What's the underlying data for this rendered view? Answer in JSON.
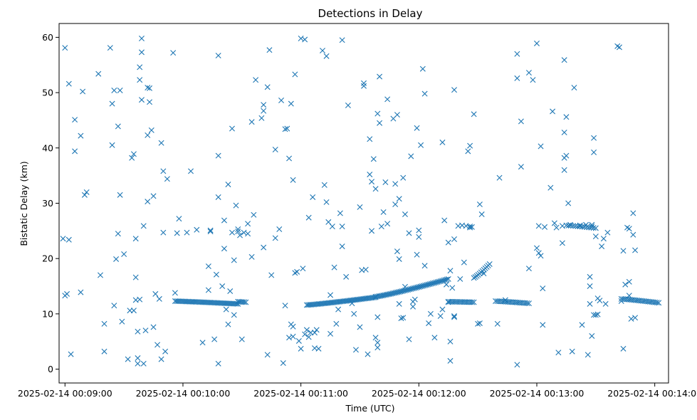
{
  "chart_data": {
    "type": "scatter",
    "title": "Detections in Delay",
    "xlabel": "Time (UTC)",
    "ylabel": "Bistatic Delay (km)",
    "marker": "x",
    "color": "#1f77b4",
    "xlim": [
      -3,
      307
    ],
    "ylim": [
      -2.5,
      62.5
    ],
    "x_units": "seconds after 2025-02-14 00:09:00",
    "x_ticks": [
      {
        "value": 0,
        "label": "2025-02-14 00:09:00"
      },
      {
        "value": 60,
        "label": "2025-02-14 00:10:00"
      },
      {
        "value": 120,
        "label": "2025-02-14 00:11:00"
      },
      {
        "value": 180,
        "label": "2025-02-14 00:12:00"
      },
      {
        "value": 240,
        "label": "2025-02-14 00:13:00"
      },
      {
        "value": 300,
        "label": "2025-02-14 00:14:00"
      }
    ],
    "y_ticks": [
      0,
      10,
      20,
      30,
      40,
      50,
      60
    ],
    "tracks": [
      {
        "name": "track-1",
        "t_start": 56,
        "t_end": 88,
        "delay_start": 12.3,
        "delay_end": 11.8,
        "count": 44
      },
      {
        "name": "track-2",
        "t_start": 88,
        "t_end": 92,
        "delay_start": 12.2,
        "delay_end": 12.1,
        "count": 6
      },
      {
        "name": "track-3",
        "t_start": 123,
        "t_end": 158,
        "delay_start": 11.6,
        "delay_end": 13.0,
        "count": 48
      },
      {
        "name": "track-4",
        "t_start": 158,
        "t_end": 195,
        "delay_start": 13.1,
        "delay_end": 16.3,
        "count": 48
      },
      {
        "name": "track-5",
        "t_start": 195,
        "t_end": 208,
        "delay_start": 12.2,
        "delay_end": 12.1,
        "count": 16
      },
      {
        "name": "track-6",
        "t_start": 219,
        "t_end": 236,
        "delay_start": 12.3,
        "delay_end": 11.9,
        "count": 20
      },
      {
        "name": "track-7",
        "t_start": 283,
        "t_end": 302,
        "delay_start": 12.7,
        "delay_end": 12.0,
        "count": 22
      },
      {
        "name": "track-8",
        "t_start": 208,
        "t_end": 216,
        "delay_start": 16.5,
        "delay_end": 19.0,
        "count": 12
      },
      {
        "name": "track-9",
        "t_start": 255,
        "t_end": 270,
        "delay_start": 26.0,
        "delay_end": 25.5,
        "count": 14
      }
    ],
    "scatter_points": [
      [
        -1,
        23.6
      ],
      [
        0,
        58.1
      ],
      [
        1,
        13.6
      ],
      [
        0,
        13.3
      ],
      [
        2,
        23.4
      ],
      [
        2,
        51.6
      ],
      [
        3,
        2.7
      ],
      [
        5,
        45.1
      ],
      [
        5,
        39.4
      ],
      [
        8,
        42.2
      ],
      [
        8,
        13.9
      ],
      [
        9,
        50.2
      ],
      [
        10,
        31.5
      ],
      [
        11,
        32.0
      ],
      [
        17,
        53.4
      ],
      [
        18,
        17.0
      ],
      [
        20,
        8.2
      ],
      [
        20,
        3.2
      ],
      [
        23,
        58.1
      ],
      [
        24,
        48
      ],
      [
        24,
        40.5
      ],
      [
        25,
        11.5
      ],
      [
        25,
        50.4
      ],
      [
        26,
        19.9
      ],
      [
        27,
        43.9
      ],
      [
        27,
        24.5
      ],
      [
        28,
        31.5
      ],
      [
        28,
        50.4
      ],
      [
        29,
        8.6
      ],
      [
        30,
        20.8
      ],
      [
        32,
        1.8
      ],
      [
        33,
        10.6
      ],
      [
        34,
        38.2
      ],
      [
        35,
        38.9
      ],
      [
        35,
        10.6
      ],
      [
        36,
        12.5
      ],
      [
        36,
        23.6
      ],
      [
        36,
        16.6
      ],
      [
        37,
        6.8
      ],
      [
        37,
        2.0
      ],
      [
        37,
        1.0
      ],
      [
        38,
        12.6
      ],
      [
        38,
        54.6
      ],
      [
        38,
        52.3
      ],
      [
        39,
        48.7
      ],
      [
        39,
        59.8
      ],
      [
        39,
        57.3
      ],
      [
        40,
        1.0
      ],
      [
        40,
        25.9
      ],
      [
        41,
        7.0
      ],
      [
        42,
        42.3
      ],
      [
        42,
        50.9
      ],
      [
        42,
        30.3
      ],
      [
        43,
        48.3
      ],
      [
        43,
        50.8
      ],
      [
        44,
        43.2
      ],
      [
        45,
        31.3
      ],
      [
        45,
        7.6
      ],
      [
        46,
        13.6
      ],
      [
        47,
        4.4
      ],
      [
        48,
        12.7
      ],
      [
        49,
        1.8
      ],
      [
        49,
        40.9
      ],
      [
        50,
        35.8
      ],
      [
        50,
        24.7
      ],
      [
        51,
        3.2
      ],
      [
        52,
        34.4
      ],
      [
        55,
        57.2
      ],
      [
        56,
        13.8
      ],
      [
        57,
        24.6
      ],
      [
        58,
        27.2
      ],
      [
        62,
        24.7
      ],
      [
        64,
        35.8
      ],
      [
        67,
        25.2
      ],
      [
        70,
        4.8
      ],
      [
        73,
        18.6
      ],
      [
        73,
        14.3
      ],
      [
        74,
        24.9
      ],
      [
        74,
        25.1
      ],
      [
        76,
        5.4
      ],
      [
        77,
        17.1
      ],
      [
        78,
        31.1
      ],
      [
        78,
        56.7
      ],
      [
        78,
        1.0
      ],
      [
        78,
        38.6
      ],
      [
        80,
        15.0
      ],
      [
        81,
        26.9
      ],
      [
        81,
        21.8
      ],
      [
        82,
        10.8
      ],
      [
        83,
        8.1
      ],
      [
        83,
        33.4
      ],
      [
        84,
        14.1
      ],
      [
        85,
        43.5
      ],
      [
        85,
        24.7
      ],
      [
        86,
        19.7
      ],
      [
        86,
        9.8
      ],
      [
        87,
        29.6
      ],
      [
        88,
        25.3
      ],
      [
        88,
        24.9
      ],
      [
        89,
        24.2
      ],
      [
        90,
        5.4
      ],
      [
        91,
        24.7
      ],
      [
        93,
        24.5
      ],
      [
        93,
        26.3
      ],
      [
        95,
        20.3
      ],
      [
        95,
        44.7
      ],
      [
        96,
        27.9
      ],
      [
        97,
        52.3
      ],
      [
        100,
        45.4
      ],
      [
        101,
        22.0
      ],
      [
        101,
        46.7
      ],
      [
        101,
        47.8
      ],
      [
        103,
        51.0
      ],
      [
        103,
        2.6
      ],
      [
        104,
        57.7
      ],
      [
        105,
        17.0
      ],
      [
        107,
        23.7
      ],
      [
        107,
        39.7
      ],
      [
        109,
        25.3
      ],
      [
        110,
        48.6
      ],
      [
        111,
        1.1
      ],
      [
        112,
        11.5
      ],
      [
        112,
        43.4
      ],
      [
        113,
        43.5
      ],
      [
        114,
        38.1
      ],
      [
        114,
        5.7
      ],
      [
        115,
        8.1
      ],
      [
        115,
        48.0
      ],
      [
        116,
        5.9
      ],
      [
        116,
        7.7
      ],
      [
        116,
        34.2
      ],
      [
        117,
        17.4
      ],
      [
        117,
        53.3
      ],
      [
        118,
        17.6
      ],
      [
        119,
        5.1
      ],
      [
        120,
        3.7
      ],
      [
        120,
        59.8
      ],
      [
        121,
        18.2
      ],
      [
        122,
        6.3
      ],
      [
        122,
        59.6
      ],
      [
        123,
        7.1
      ],
      [
        124,
        5.8
      ],
      [
        124,
        27.4
      ],
      [
        125,
        6.6
      ],
      [
        126,
        31.1
      ],
      [
        127,
        6.6
      ],
      [
        127,
        3.8
      ],
      [
        128,
        7.1
      ],
      [
        129,
        3.7
      ],
      [
        131,
        57.6
      ],
      [
        132,
        33.3
      ],
      [
        133,
        30.2
      ],
      [
        133,
        56.6
      ],
      [
        134,
        26.6
      ],
      [
        135,
        13.4
      ],
      [
        135,
        6.4
      ],
      [
        136,
        25.8
      ],
      [
        137,
        18.4
      ],
      [
        138,
        8.2
      ],
      [
        139,
        10.8
      ],
      [
        140,
        28.2
      ],
      [
        141,
        22.2
      ],
      [
        141,
        25.8
      ],
      [
        141,
        59.5
      ],
      [
        143,
        16.7
      ],
      [
        144,
        47.7
      ],
      [
        146,
        11.9
      ],
      [
        147,
        10.0
      ],
      [
        148,
        3.5
      ],
      [
        150,
        7.6
      ],
      [
        150,
        29.3
      ],
      [
        151,
        17.9
      ],
      [
        152,
        51.7
      ],
      [
        152,
        51.2
      ],
      [
        153,
        18.0
      ],
      [
        154,
        2.7
      ],
      [
        155,
        41.6
      ],
      [
        155,
        35.2
      ],
      [
        156,
        33.9
      ],
      [
        156,
        25
      ],
      [
        157,
        38
      ],
      [
        158,
        32.6
      ],
      [
        158,
        5.7
      ],
      [
        159,
        46.2
      ],
      [
        159,
        9.4
      ],
      [
        159,
        4.8
      ],
      [
        159,
        3.9
      ],
      [
        160,
        44.5
      ],
      [
        160,
        52.9
      ],
      [
        161,
        25.8
      ],
      [
        162,
        28.4
      ],
      [
        163,
        33.8
      ],
      [
        164,
        26.3
      ],
      [
        164,
        48.8
      ],
      [
        167,
        45.3
      ],
      [
        168,
        33.5
      ],
      [
        168,
        29.8
      ],
      [
        169,
        46.0
      ],
      [
        169,
        21.3
      ],
      [
        170,
        30.8
      ],
      [
        170,
        19.9
      ],
      [
        170,
        11.8
      ],
      [
        171,
        9.2
      ],
      [
        172,
        9.3
      ],
      [
        172,
        34.6
      ],
      [
        173,
        14.9
      ],
      [
        173,
        28.0
      ],
      [
        175,
        5.4
      ],
      [
        175,
        24.6
      ],
      [
        176,
        38.5
      ],
      [
        177,
        12.2
      ],
      [
        177,
        11.3
      ],
      [
        178,
        12.6
      ],
      [
        179,
        43.6
      ],
      [
        179,
        20.7
      ],
      [
        180,
        23.9
      ],
      [
        180,
        25.1
      ],
      [
        181,
        40.5
      ],
      [
        182,
        54.3
      ],
      [
        183,
        18.7
      ],
      [
        183,
        49.8
      ],
      [
        185,
        8.3
      ],
      [
        186,
        10.0
      ],
      [
        188,
        5.7
      ],
      [
        191,
        9.6
      ],
      [
        192,
        10.8
      ],
      [
        192,
        41.0
      ],
      [
        193,
        26.9
      ],
      [
        194,
        15.3
      ],
      [
        195,
        22.9
      ],
      [
        195,
        12.1
      ],
      [
        196,
        1.5
      ],
      [
        196,
        17.8
      ],
      [
        196,
        5.0
      ],
      [
        197,
        14.7
      ],
      [
        198,
        50.5
      ],
      [
        198,
        9.4
      ],
      [
        198,
        23.5
      ],
      [
        198,
        9.6
      ],
      [
        200,
        25.9
      ],
      [
        201,
        16.3
      ],
      [
        202,
        26.0
      ],
      [
        203,
        19.3
      ],
      [
        204,
        25.9
      ],
      [
        205,
        39.4
      ],
      [
        206,
        25.8
      ],
      [
        206,
        40.4
      ],
      [
        206,
        25.6
      ],
      [
        207,
        25.7
      ],
      [
        208,
        46.1
      ],
      [
        210,
        8.2
      ],
      [
        211,
        29.8
      ],
      [
        211,
        8.3
      ],
      [
        212,
        28.0
      ],
      [
        213,
        17.3
      ],
      [
        220,
        8.2
      ],
      [
        221,
        34.6
      ],
      [
        224,
        12.5
      ],
      [
        230,
        57.0
      ],
      [
        230,
        52.6
      ],
      [
        230,
        0.8
      ],
      [
        232,
        36.6
      ],
      [
        232,
        44.8
      ],
      [
        236,
        18.2
      ],
      [
        236,
        53.6
      ],
      [
        238,
        52.3
      ],
      [
        240,
        58.9
      ],
      [
        240,
        21.9
      ],
      [
        241,
        21.0
      ],
      [
        241,
        25.9
      ],
      [
        242,
        40.3
      ],
      [
        242,
        20.5
      ],
      [
        243,
        14.6
      ],
      [
        243,
        8.0
      ],
      [
        244,
        25.7
      ],
      [
        247,
        32.8
      ],
      [
        248,
        46.6
      ],
      [
        249,
        26.4
      ],
      [
        250,
        25.6
      ],
      [
        251,
        3.0
      ],
      [
        253,
        22.8
      ],
      [
        253,
        25.9
      ],
      [
        254,
        55.9
      ],
      [
        254,
        42.8
      ],
      [
        254,
        36.0
      ],
      [
        254,
        38.2
      ],
      [
        255,
        38.6
      ],
      [
        255,
        45.6
      ],
      [
        256,
        30.0
      ],
      [
        257,
        26.1
      ],
      [
        258,
        3.2
      ],
      [
        259,
        50.9
      ],
      [
        262,
        26.0
      ],
      [
        263,
        8.0
      ],
      [
        265,
        26.1
      ],
      [
        266,
        2.6
      ],
      [
        267,
        16.7
      ],
      [
        267,
        11.8
      ],
      [
        267,
        15.0
      ],
      [
        268,
        6.0
      ],
      [
        268,
        26.1
      ],
      [
        268,
        25.8
      ],
      [
        269,
        39.2
      ],
      [
        269,
        41.8
      ],
      [
        269,
        9.8
      ],
      [
        270,
        9.8
      ],
      [
        270,
        24.0
      ],
      [
        271,
        12.8
      ],
      [
        271,
        9.9
      ],
      [
        272,
        12.4
      ],
      [
        273,
        22.2
      ],
      [
        274,
        23.6
      ],
      [
        275,
        11.8
      ],
      [
        276,
        24.7
      ],
      [
        281,
        58.4
      ],
      [
        282,
        58.2
      ],
      [
        283,
        12.3
      ],
      [
        284,
        21.4
      ],
      [
        284,
        3.7
      ],
      [
        285,
        15.3
      ],
      [
        286,
        25.6
      ],
      [
        287,
        15.8
      ],
      [
        287,
        13.3
      ],
      [
        287,
        25.4
      ],
      [
        288,
        9.1
      ],
      [
        289,
        28.2
      ],
      [
        289,
        24.3
      ],
      [
        290,
        9.3
      ],
      [
        290,
        21.5
      ]
    ]
  }
}
